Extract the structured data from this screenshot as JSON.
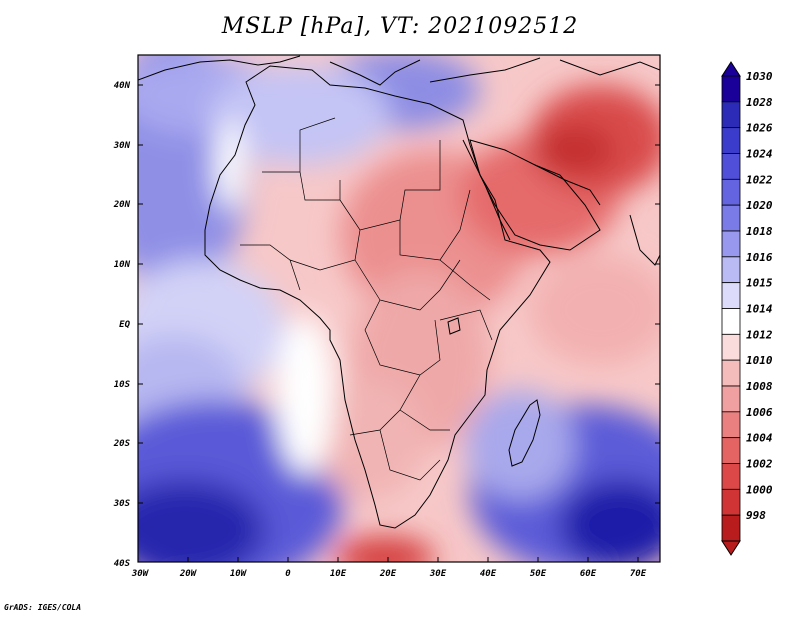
{
  "title": "MSLP [hPa], VT: 2021092512",
  "footer": "GrADS: IGES/COLA",
  "map": {
    "lat_labels": [
      "40N",
      "30N",
      "20N",
      "10N",
      "EQ",
      "10S",
      "20S",
      "30S",
      "40S"
    ],
    "lon_labels": [
      "30W",
      "20W",
      "10W",
      "0",
      "10E",
      "20E",
      "30E",
      "40E",
      "50E",
      "60E",
      "70E"
    ],
    "lon_range": [
      -30,
      75
    ],
    "lat_range": [
      -40,
      45
    ]
  },
  "colorbar": {
    "levels": [
      "1030",
      "1028",
      "1026",
      "1024",
      "1022",
      "1020",
      "1018",
      "1016",
      "1015",
      "1014",
      "1012",
      "1010",
      "1008",
      "1006",
      "1004",
      "1002",
      "1000",
      "998"
    ],
    "colors": [
      "#1a0099",
      "#2b2bb8",
      "#3c3ccc",
      "#4f4fd9",
      "#6464e0",
      "#7b7be8",
      "#9898ee",
      "#babaf5",
      "#dcdcfa",
      "#ffffff",
      "#fadcdc",
      "#f5bcbc",
      "#f0a0a0",
      "#ea8080",
      "#e46464",
      "#dc4848",
      "#d03434",
      "#b81c1c"
    ]
  }
}
